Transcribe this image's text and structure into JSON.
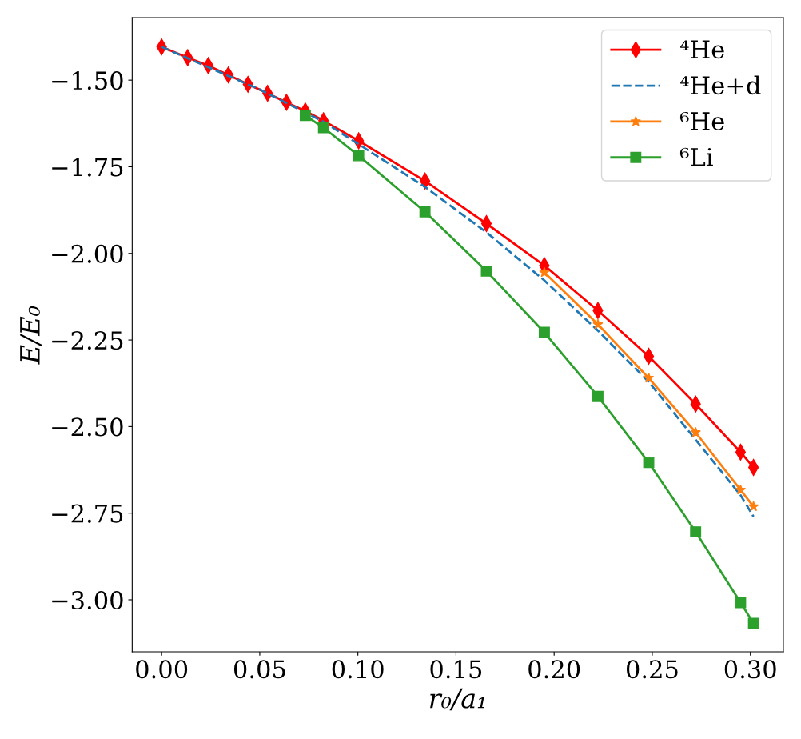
{
  "chart_data": {
    "type": "line",
    "xlabel": "r₀/a₁",
    "ylabel": "E/E₀",
    "xlim": [
      -0.015,
      0.3168
    ],
    "ylim": [
      -3.15,
      -1.32
    ],
    "xticks": [
      {
        "value": 0.0,
        "label": "0.00"
      },
      {
        "value": 0.05,
        "label": "0.05"
      },
      {
        "value": 0.1,
        "label": "0.10"
      },
      {
        "value": 0.15,
        "label": "0.15"
      },
      {
        "value": 0.2,
        "label": "0.20"
      },
      {
        "value": 0.25,
        "label": "0.25"
      },
      {
        "value": 0.3,
        "label": "0.30"
      }
    ],
    "yticks": [
      {
        "value": -3.0,
        "label": "−3.00"
      },
      {
        "value": -2.75,
        "label": "−2.75"
      },
      {
        "value": -2.5,
        "label": "−2.50"
      },
      {
        "value": -2.25,
        "label": "−2.25"
      },
      {
        "value": -2.0,
        "label": "−2.00"
      },
      {
        "value": -1.75,
        "label": "−1.75"
      },
      {
        "value": -1.5,
        "label": "−1.50"
      }
    ],
    "grid": false,
    "legend": "top right",
    "series": [
      {
        "name": "⁴He",
        "color": "#ff0000",
        "marker": "diamond",
        "line_style": "solid",
        "x": [
          0.0,
          0.0133,
          0.0238,
          0.034,
          0.044,
          0.054,
          0.0636,
          0.0732,
          0.0825,
          0.1004,
          0.1342,
          0.1655,
          0.195,
          0.2223,
          0.2482,
          0.2721,
          0.295,
          0.3016
        ],
        "values": [
          -1.404,
          -1.435,
          -1.458,
          -1.485,
          -1.512,
          -1.538,
          -1.564,
          -1.589,
          -1.617,
          -1.675,
          -1.791,
          -1.914,
          -2.035,
          -2.165,
          -2.297,
          -2.435,
          -2.574,
          -2.618
        ]
      },
      {
        "name": "⁴He+d",
        "color": "#1f77b4",
        "marker": "none",
        "line_style": "dashed",
        "x": [
          0.0,
          0.05,
          0.0825,
          0.1004,
          0.1342,
          0.1655,
          0.195,
          0.2223,
          0.2482,
          0.2721,
          0.295,
          0.3016
        ],
        "values": [
          -1.404,
          -1.527,
          -1.62,
          -1.685,
          -1.808,
          -1.939,
          -2.078,
          -2.223,
          -2.371,
          -2.538,
          -2.698,
          -2.76
        ]
      },
      {
        "name": "⁶He",
        "color": "#ff7f0e",
        "marker": "star",
        "line_style": "solid",
        "x": [
          0.195,
          0.2223,
          0.2482,
          0.2721,
          0.295,
          0.3016
        ],
        "values": [
          -2.055,
          -2.205,
          -2.36,
          -2.517,
          -2.683,
          -2.731
        ]
      },
      {
        "name": "⁶Li",
        "color": "#2ca02c",
        "marker": "square",
        "line_style": "solid",
        "x": [
          0.0732,
          0.0825,
          0.1004,
          0.1342,
          0.1655,
          0.195,
          0.2223,
          0.2482,
          0.2721,
          0.295,
          0.3016
        ],
        "values": [
          -1.602,
          -1.637,
          -1.718,
          -1.88,
          -2.051,
          -2.228,
          -2.413,
          -2.604,
          -2.804,
          -3.008,
          -3.068
        ]
      }
    ]
  }
}
